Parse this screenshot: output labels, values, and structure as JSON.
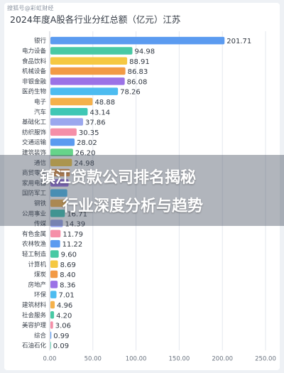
{
  "watermark": "搜狐号@彩虹财经",
  "overlay": {
    "line1": "镇江贷款公司排名揭秘",
    "line2": "行业深度分析与趋势"
  },
  "chart_data": {
    "type": "bar",
    "orientation": "horizontal",
    "title": "2024年度A股各行业分红总额（亿元）江苏",
    "xlim": [
      0,
      250
    ],
    "xticks": [
      "0.00",
      "50.00",
      "100.00",
      "150.00",
      "200.00",
      "250.00"
    ],
    "grid": true,
    "categories": [
      "银行",
      "电力设备",
      "食品饮料",
      "机械设备",
      "非银金融",
      "医药生物",
      "电子",
      "汽车",
      "基础化工",
      "纺织服饰",
      "交通运输",
      "建筑装饰",
      "通信",
      "商贸零售",
      "家用电器",
      "国防军工",
      "钢铁",
      "公用事业",
      "传媒",
      "有色金属",
      "农林牧渔",
      "轻工制造",
      "计算机",
      "煤炭",
      "房地产",
      "环保",
      "建筑材料",
      "社会服务",
      "美容护理",
      "综合",
      "石油石化"
    ],
    "values": [
      201.71,
      94.98,
      88.91,
      86.83,
      86.08,
      78.26,
      48.88,
      43.14,
      37.86,
      30.35,
      28.02,
      26.2,
      24.98,
      22.5,
      21.0,
      19.5,
      18.0,
      16.71,
      14.39,
      11.79,
      11.22,
      9.6,
      8.69,
      8.4,
      8.36,
      7.01,
      4.96,
      4.2,
      3.06,
      0.99,
      0.09
    ],
    "labels": [
      "201.71",
      "94.98",
      "88.91",
      "86.83",
      "86.08",
      "78.26",
      "48.88",
      "43.14",
      "37.86",
      "30.35",
      "28.02",
      "26.20",
      "24.98",
      "",
      "",
      "",
      "",
      "16.71",
      "14.39",
      "11.79",
      "11.22",
      "9.60",
      "8.69",
      "8.40",
      "8.36",
      "7.01",
      "4.96",
      "4.20",
      "3.06",
      "0.99",
      "0.09"
    ],
    "colors": [
      "#5b9bf0",
      "#48c9a4",
      "#f5c842",
      "#f29a45",
      "#9b72e6",
      "#4dbcf0",
      "#f5b14b",
      "#3fc7b5",
      "#9ba7ee",
      "#f58fa8",
      "#5b9bf0",
      "#66d48a",
      "#f5c842",
      "#f29a45",
      "#9b72e6",
      "#4dbcf0",
      "#f5b14b",
      "#3fc7b5",
      "#9ba7ee",
      "#f58fa8",
      "#5b9bf0",
      "#48c9a4",
      "#f5c842",
      "#f29a45",
      "#9b72e6",
      "#4dbcf0",
      "#f5b14b",
      "#48c9a4",
      "#f58fa8",
      "#5b9bf0",
      "#48c9a4"
    ]
  }
}
